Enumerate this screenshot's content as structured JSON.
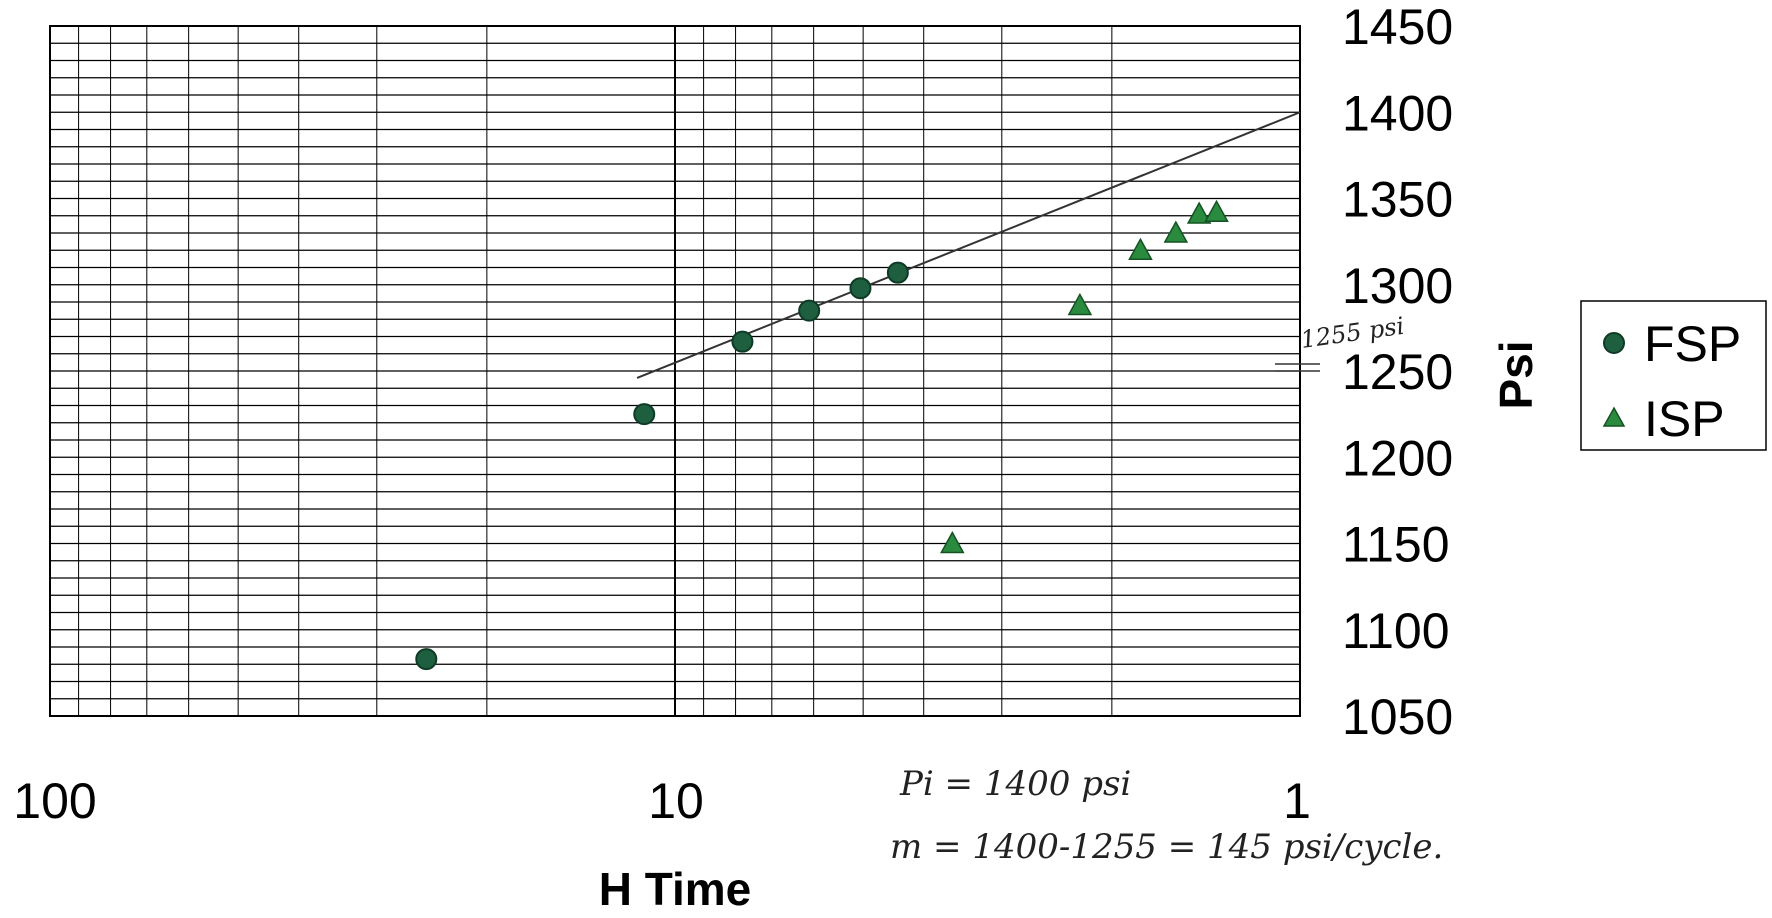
{
  "chart_data": {
    "type": "scatter",
    "title": "",
    "xlabel": "H Time",
    "ylabel": "Psi",
    "x_scale": "log",
    "x_reversed": true,
    "xlim": [
      100,
      1
    ],
    "ylim": [
      1050,
      1450
    ],
    "x_ticks": [
      "100",
      "10",
      "1"
    ],
    "y_ticks": [
      "1450",
      "1400",
      "1350",
      "1300",
      "1250",
      "1200",
      "1150",
      "1100",
      "1050"
    ],
    "grid": true,
    "legend_position": "right",
    "colors": {
      "point": "#1e5f3f",
      "triangle": "#2a8a3e",
      "grid": "#000000",
      "trend": "#333333"
    },
    "series": [
      {
        "name": "FSP",
        "marker": "circle",
        "points": [
          {
            "x": 25,
            "y": 1083
          },
          {
            "x": 11.2,
            "y": 1225
          },
          {
            "x": 7.8,
            "y": 1267
          },
          {
            "x": 6.1,
            "y": 1285
          },
          {
            "x": 5.05,
            "y": 1298
          },
          {
            "x": 4.4,
            "y": 1307
          }
        ]
      },
      {
        "name": "ISP",
        "marker": "triangle",
        "points": [
          {
            "x": 3.6,
            "y": 1150
          },
          {
            "x": 2.25,
            "y": 1288
          },
          {
            "x": 1.8,
            "y": 1320
          },
          {
            "x": 1.58,
            "y": 1330
          },
          {
            "x": 1.45,
            "y": 1341
          },
          {
            "x": 1.36,
            "y": 1342
          }
        ]
      }
    ],
    "trend_line": {
      "from": {
        "x": 11.5,
        "y": 1246
      },
      "to": {
        "x": 1,
        "y": 1400
      }
    },
    "annotations": {
      "pressure_mark": "1255 psi",
      "line1": "Pi = 1400 psi",
      "line2": "m = 1400-1255 = 145 psi/cycle."
    }
  }
}
